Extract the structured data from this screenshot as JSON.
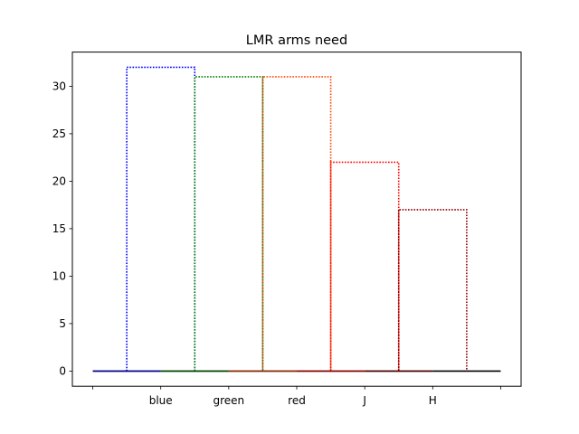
{
  "chart_data": {
    "type": "bar",
    "style": "step-outline",
    "title": "LMR arms need",
    "xlabel": "",
    "ylabel": "",
    "categories": [
      "blue",
      "green",
      "red",
      "J",
      "H"
    ],
    "values": [
      32,
      31,
      31,
      22,
      17
    ],
    "colors": [
      "#0000ff",
      "#008000",
      "#ff4500",
      "#ff0000",
      "#8b0000"
    ],
    "yticks": [
      0,
      5,
      10,
      15,
      20,
      25,
      30
    ],
    "ylim": [
      -1.6,
      33.6
    ],
    "grid": false,
    "legend": "none"
  }
}
